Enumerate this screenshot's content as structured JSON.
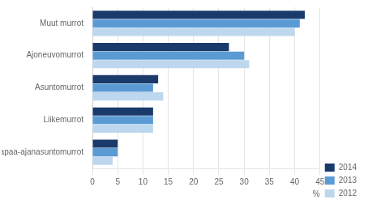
{
  "chart_data": {
    "type": "bar",
    "orientation": "horizontal",
    "xlabel": "%",
    "categories": [
      "Muut murrot",
      "Ajoneuvomurrot",
      "Asuntomurrot",
      "Liikemurrot",
      "Vapaa-ajanasuntomurrot"
    ],
    "series": [
      {
        "name": "2014",
        "color": "#1a3a6b",
        "values": [
          42,
          27,
          13,
          12,
          5
        ]
      },
      {
        "name": "2013",
        "color": "#5b9bd5",
        "values": [
          41,
          30,
          12,
          12,
          5
        ]
      },
      {
        "name": "2012",
        "color": "#bdd7ee",
        "values": [
          40,
          31,
          14,
          12,
          4
        ]
      }
    ],
    "xlim": [
      0,
      45
    ],
    "xticks": [
      0,
      5,
      10,
      15,
      20,
      25,
      30,
      35,
      40,
      45
    ],
    "grid": true,
    "legend": "lower right"
  }
}
